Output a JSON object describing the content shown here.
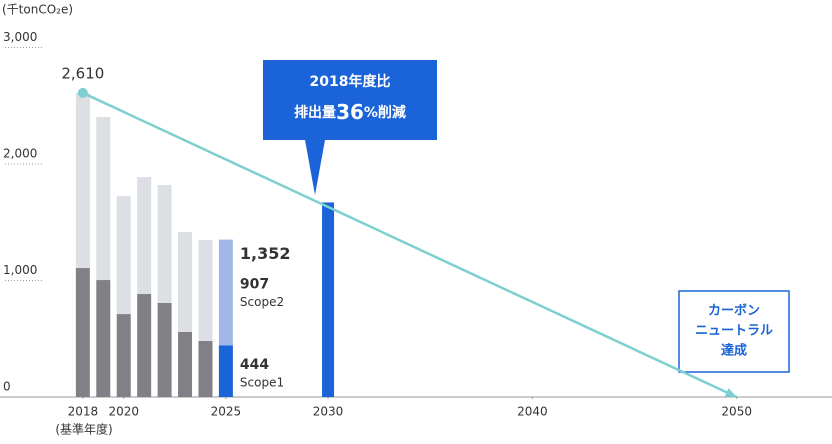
{
  "chart_data": {
    "type": "bar",
    "unit_label": "(千tonCO₂e)",
    "x": [
      2018,
      2019,
      2020,
      2021,
      2022,
      2023,
      2024,
      2025
    ],
    "series": [
      {
        "name": "Scope1",
        "color": "#808086",
        "highlight_color": "#1a63d8",
        "values": [
          1107,
          1004,
          712,
          884,
          807,
          558,
          481,
          444
        ]
      },
      {
        "name": "Scope2",
        "color": "#dcdfe3",
        "highlight_color": "#a2b8ea",
        "values": [
          1503,
          1399,
          1013,
          1004,
          1013,
          858,
          867,
          907
        ]
      }
    ],
    "total_label": {
      "value": 1352,
      "label": "1,352"
    },
    "target": {
      "x": 2030,
      "value": 1670,
      "color": "#1a63d8"
    },
    "trend": {
      "x": [
        2018,
        2050
      ],
      "values": [
        2610,
        0
      ],
      "value_labels": [
        "2,610",
        null
      ],
      "color": "#7ecfd0"
    },
    "callout": {
      "line1": "2018年度比",
      "line2_prefix": "排出量",
      "line2_number": "36",
      "line2_suffix": "%削減"
    },
    "goal_box": {
      "lines": [
        "カーボン",
        "ニュートラル",
        "達成"
      ]
    },
    "base_year_note": "(基準年度)",
    "xlim": [
      2016,
      2053
    ],
    "xticks": [
      2018,
      2020,
      2025,
      2030,
      2040,
      2050
    ],
    "ylim": [
      0,
      3000
    ],
    "yticks": [
      0,
      {
        "value": 1000,
        "label": "1,000"
      },
      {
        "value": 2000,
        "label": "2,000"
      },
      {
        "value": 3000,
        "label": "3,000"
      }
    ]
  }
}
